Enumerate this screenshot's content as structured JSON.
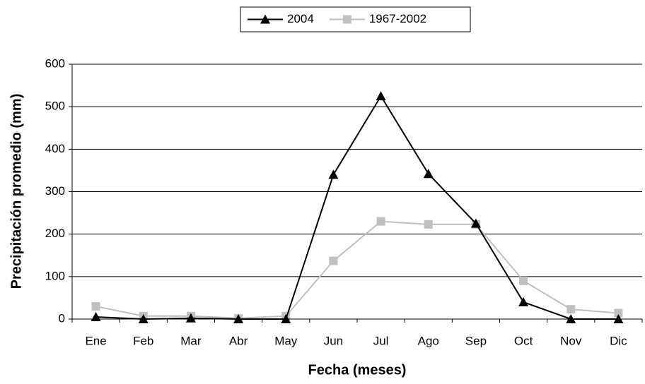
{
  "chart_data": {
    "type": "line",
    "x_label": "Fecha (meses)",
    "y_label": "Precipitación promedio (mm)",
    "categories": [
      "Ene",
      "Feb",
      "Mar",
      "Abr",
      "May",
      "Jun",
      "Jul",
      "Ago",
      "Sep",
      "Oct",
      "Nov",
      "Dic"
    ],
    "series": [
      {
        "name": "2004",
        "color": "#000000",
        "marker": "triangle",
        "values": [
          5,
          0,
          2,
          0,
          0,
          340,
          525,
          342,
          225,
          40,
          0,
          0
        ]
      },
      {
        "name": "1967-2002",
        "color": "#c0c0c0",
        "marker": "square",
        "values": [
          30,
          7,
          7,
          2,
          7,
          137,
          230,
          223,
          223,
          90,
          23,
          14
        ]
      }
    ],
    "ylim": [
      0,
      600
    ],
    "yticks": [
      0,
      100,
      200,
      300,
      400,
      500,
      600
    ],
    "grid": true,
    "legend": "top"
  }
}
